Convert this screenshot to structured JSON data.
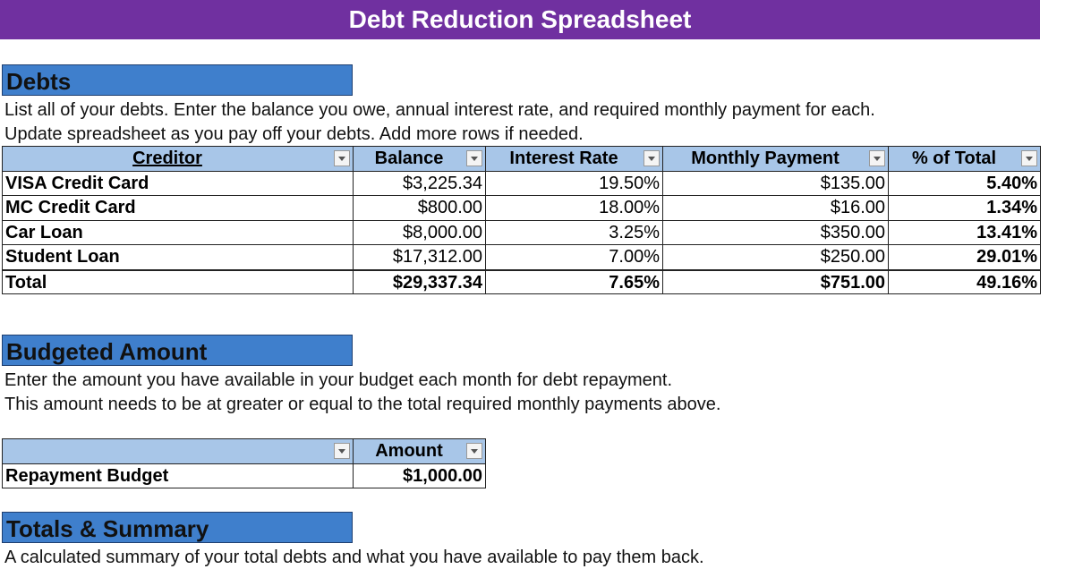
{
  "header": {
    "title": "Debt Reduction Spreadsheet"
  },
  "sections": [
    {
      "title": "Debts",
      "description": [
        "List all of your debts. Enter the balance you owe, annual interest rate, and required monthly payment for each.",
        "Update spreadsheet as you pay off your debts. Add more rows if needed."
      ]
    },
    {
      "title": "Budgeted Amount",
      "description": [
        "Enter the amount you have available in your budget each month for debt repayment.",
        "This amount needs to be at greater or equal to the total required monthly payments above."
      ]
    },
    {
      "title": "Totals & Summary",
      "description": [
        "A calculated summary of your total debts and what you have available to pay them back."
      ]
    }
  ],
  "debts_table": {
    "columns": [
      "Creditor",
      "Balance",
      "Interest Rate",
      "Monthly Payment",
      "% of Total"
    ],
    "rows": [
      [
        "VISA Credit Card",
        "$3,225.34",
        "19.50%",
        "$135.00",
        "5.40%"
      ],
      [
        "MC Credit Card",
        "$800.00",
        "18.00%",
        "$16.00",
        "1.34%"
      ],
      [
        "Car Loan",
        "$8,000.00",
        "3.25%",
        "$350.00",
        "13.41%"
      ],
      [
        "Student Loan",
        "$17,312.00",
        "7.00%",
        "$250.00",
        "29.01%"
      ],
      [
        "Total",
        "$29,337.34",
        "7.65%",
        "$751.00",
        "49.16%"
      ]
    ]
  },
  "budget_table": {
    "columns": [
      "Amount"
    ],
    "rows": [
      [
        "Repayment Budget",
        "$1,000.00"
      ]
    ]
  }
}
